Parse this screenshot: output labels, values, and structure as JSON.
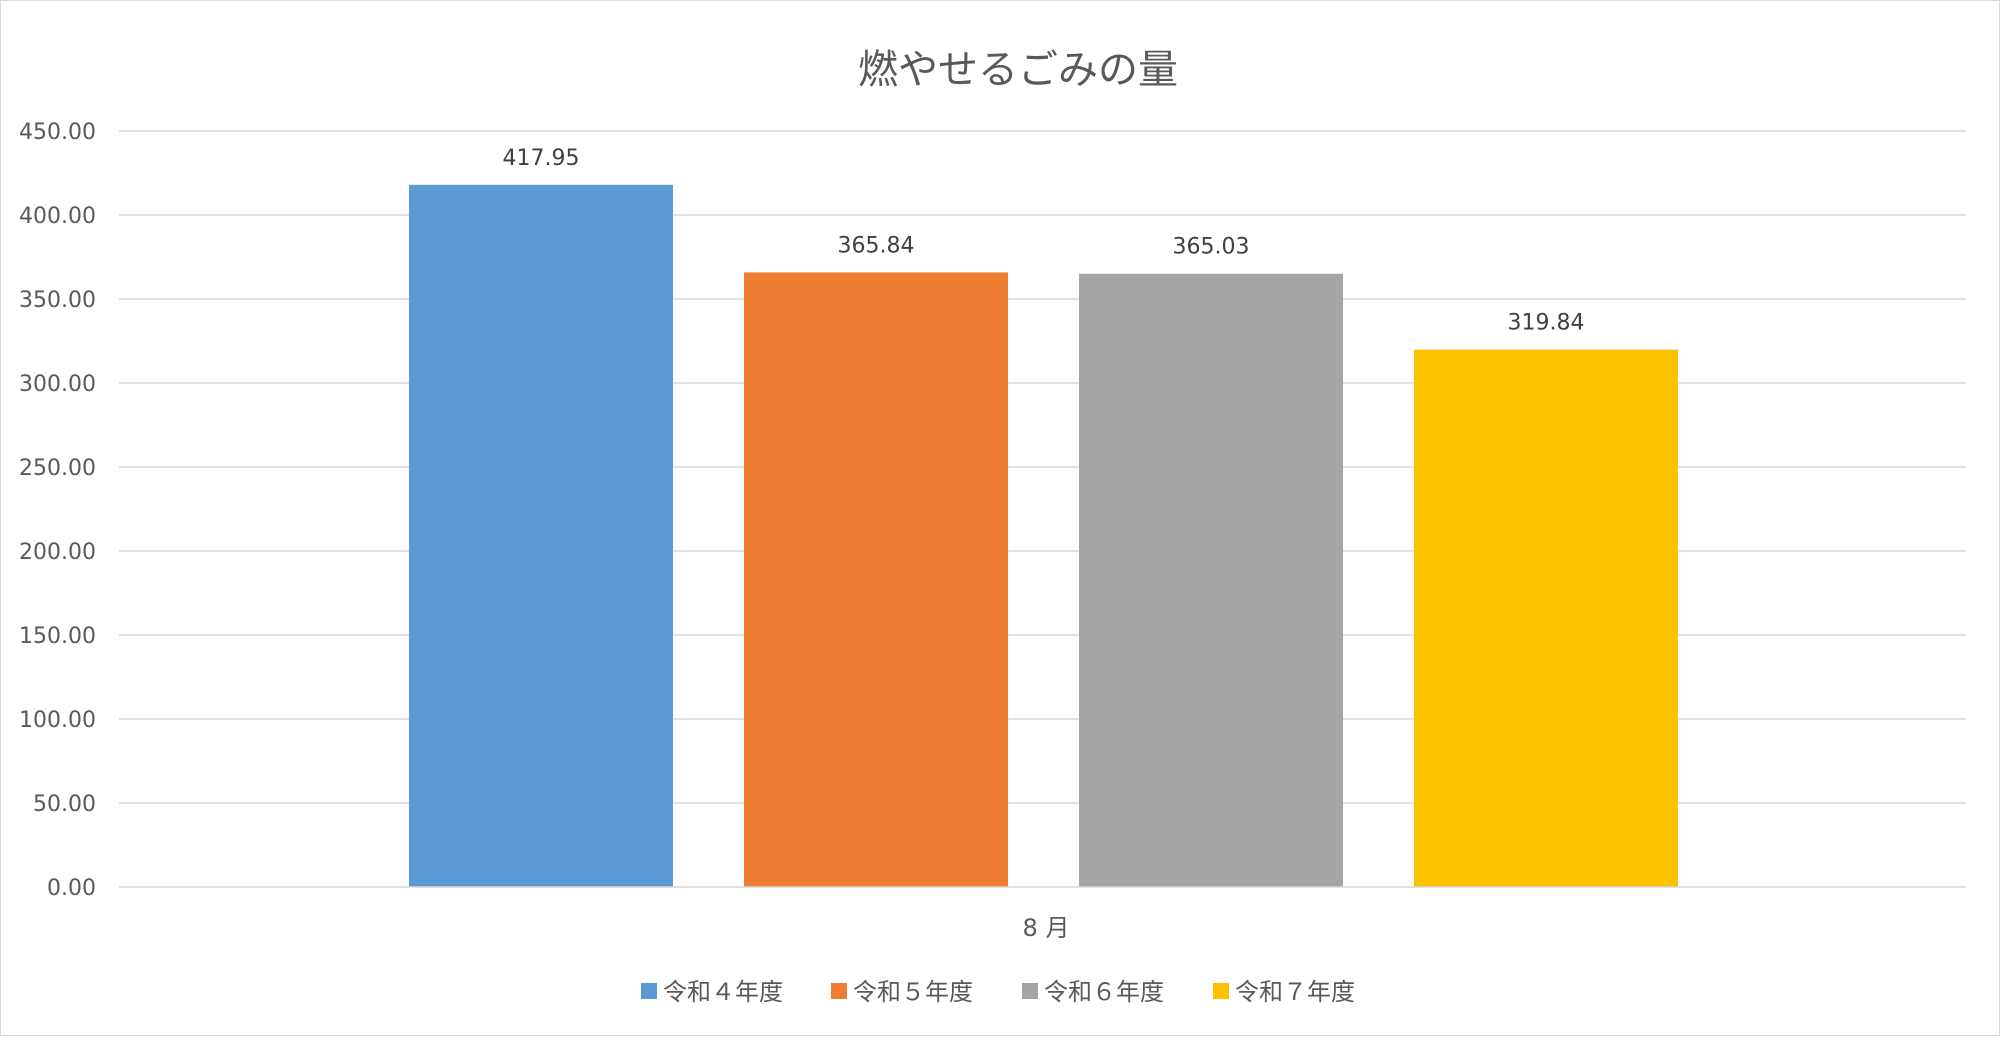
{
  "chart_data": {
    "type": "bar",
    "title": "燃やせるごみの量",
    "categories": [
      "8 月"
    ],
    "series": [
      {
        "name": "令和４年度",
        "values": [
          417.95
        ],
        "color": "#5b9bd5"
      },
      {
        "name": "令和５年度",
        "values": [
          365.84
        ],
        "color": "#ed7d31"
      },
      {
        "name": "令和６年度",
        "values": [
          365.03
        ],
        "color": "#a5a5a5"
      },
      {
        "name": "令和７年度",
        "values": [
          319.84
        ],
        "color": "#ffc000"
      }
    ],
    "data_labels": [
      "417.95",
      "365.84",
      "365.03",
      "319.84"
    ],
    "y_ticks": [
      "0.00",
      "50.00",
      "100.00",
      "150.00",
      "200.00",
      "250.00",
      "300.00",
      "350.00",
      "400.00",
      "450.00"
    ],
    "ylim": [
      0,
      450
    ],
    "xlabel": "",
    "ylabel": "",
    "grid": true,
    "legend_position": "bottom"
  }
}
